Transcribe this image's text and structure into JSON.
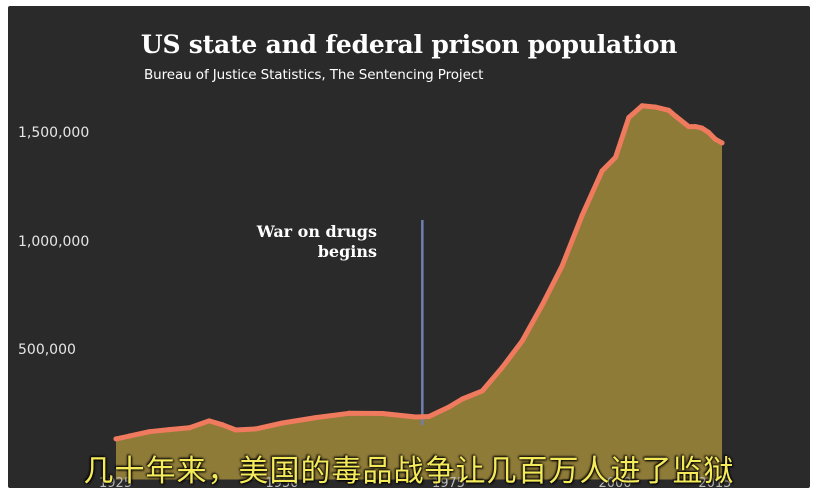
{
  "chart_data": {
    "type": "area",
    "title": "US state and federal prison population",
    "subtitle": "Bureau of Justice Statistics, The Sentencing Project",
    "xlabel": "",
    "ylabel": "",
    "xlim": [
      1925,
      2016
    ],
    "ylim": [
      0,
      1650000
    ],
    "y_ticks": [
      500000,
      1000000,
      1500000
    ],
    "y_tick_labels": [
      "500,000",
      "1,000,000",
      "1,500,000"
    ],
    "x_ticks": [
      1925,
      1950,
      1975,
      2000,
      2015
    ],
    "x_tick_labels": [
      "1925",
      "1950",
      "1975",
      "2000",
      "2015"
    ],
    "x": [
      1925,
      1927,
      1930,
      1933,
      1936,
      1939,
      1941,
      1943,
      1946,
      1950,
      1955,
      1960,
      1965,
      1970,
      1972,
      1975,
      1977,
      1980,
      1983,
      1986,
      1989,
      1992,
      1995,
      1998,
      2000,
      2002,
      2004,
      2006,
      2008,
      2009,
      2011,
      2012,
      2013,
      2014,
      2015,
      2016
    ],
    "values": [
      95000,
      108000,
      128000,
      138000,
      146000,
      178000,
      160000,
      136000,
      141000,
      168000,
      193000,
      213000,
      212000,
      196000,
      198000,
      242000,
      279000,
      316000,
      424000,
      546000,
      712000,
      893000,
      1126000,
      1330000,
      1392000,
      1576000,
      1630000,
      1624000,
      1609000,
      1583000,
      1534000,
      1534000,
      1527000,
      1507000,
      1476000,
      1459000
    ],
    "annotations": [
      {
        "x": 1971,
        "text": "War on drugs\nbegins"
      }
    ],
    "annotation_line1": "War on drugs",
    "annotation_line2": "begins",
    "grid": false,
    "colors": {
      "line": "#ef7a5e",
      "area": "#8f7b38",
      "background": "#2a2a2a",
      "annotation_line": "#6f7fb0"
    }
  },
  "caption": "几十年来，美国的毒品战争让几百万人进了监狱"
}
